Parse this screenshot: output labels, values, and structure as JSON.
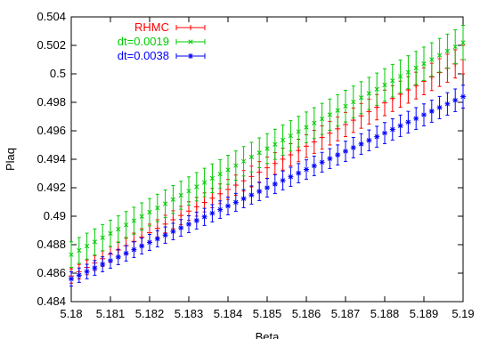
{
  "chart_data": {
    "type": "scatter",
    "xlabel": "Beta",
    "ylabel": "Plaq",
    "xlim": [
      5.18,
      5.19
    ],
    "ylim": [
      0.484,
      0.504
    ],
    "xticks": [
      "5.18",
      "5.181",
      "5.182",
      "5.183",
      "5.184",
      "5.185",
      "5.186",
      "5.187",
      "5.188",
      "5.189",
      "5.19"
    ],
    "yticks": [
      "0.484",
      "0.486",
      "0.488",
      "0.49",
      "0.492",
      "0.494",
      "0.496",
      "0.498",
      "0.5",
      "0.502",
      "0.504"
    ],
    "grid": false,
    "legend_position": "top-left",
    "series": [
      {
        "name": "RHMC",
        "color": "#ff0000",
        "marker": "plus",
        "x_start": 5.18,
        "x_end": 5.19,
        "y_start": 0.4858,
        "y_end": 0.501,
        "error_start": 0.0005,
        "error_end": 0.001
      },
      {
        "name": "dt=0.0019",
        "color": "#00cc00",
        "marker": "x",
        "x_start": 5.18,
        "x_end": 5.19,
        "y_start": 0.4873,
        "y_end": 0.5022,
        "error_start": 0.0009,
        "error_end": 0.0012
      },
      {
        "name": "dt=0.0038",
        "color": "#0000ff",
        "marker": "star",
        "x_start": 5.18,
        "x_end": 5.19,
        "y_start": 0.4856,
        "y_end": 0.4984,
        "error_start": 0.0005,
        "error_end": 0.0008
      }
    ]
  }
}
